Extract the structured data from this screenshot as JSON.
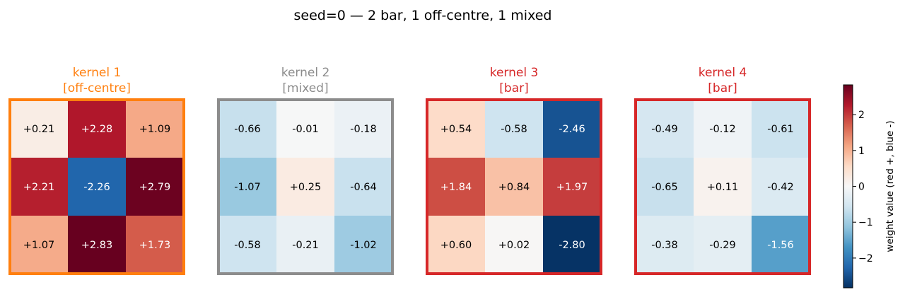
{
  "chart_data": {
    "type": "heatmap",
    "title": "seed=0  —  2 bar, 1 off-centre, 1 mixed",
    "kernels": [
      {
        "name": "kernel 1",
        "tag": "[off-centre]",
        "color": "#ff7f0e",
        "values": [
          [
            0.21,
            2.28,
            1.09
          ],
          [
            2.21,
            -2.26,
            2.79
          ],
          [
            1.07,
            2.83,
            1.73
          ]
        ],
        "labels": [
          [
            "+0.21",
            "+2.28",
            "+1.09"
          ],
          [
            "+2.21",
            "-2.26",
            "+2.79"
          ],
          [
            "+1.07",
            "+2.83",
            "+1.73"
          ]
        ]
      },
      {
        "name": "kernel 2",
        "tag": "[mixed]",
        "color": "#8c8c8c",
        "values": [
          [
            -0.66,
            -0.01,
            -0.18
          ],
          [
            -1.07,
            0.25,
            -0.64
          ],
          [
            -0.58,
            -0.21,
            -1.02
          ]
        ],
        "labels": [
          [
            "-0.66",
            "-0.01",
            "-0.18"
          ],
          [
            "-1.07",
            "+0.25",
            "-0.64"
          ],
          [
            "-0.58",
            "-0.21",
            "-1.02"
          ]
        ]
      },
      {
        "name": "kernel 3",
        "tag": "[bar]",
        "color": "#d62728",
        "values": [
          [
            0.54,
            -0.58,
            -2.46
          ],
          [
            1.84,
            0.84,
            1.97
          ],
          [
            0.6,
            0.02,
            -2.8
          ]
        ],
        "labels": [
          [
            "+0.54",
            "-0.58",
            "-2.46"
          ],
          [
            "+1.84",
            "+0.84",
            "+1.97"
          ],
          [
            "+0.60",
            "+0.02",
            "-2.80"
          ]
        ]
      },
      {
        "name": "kernel 4",
        "tag": "[bar]",
        "color": "#d62728",
        "values": [
          [
            -0.49,
            -0.12,
            -0.61
          ],
          [
            -0.65,
            0.11,
            -0.42
          ],
          [
            -0.38,
            -0.29,
            -1.56
          ]
        ],
        "labels": [
          [
            "-0.49",
            "-0.12",
            "-0.61"
          ],
          [
            "-0.65",
            "+0.11",
            "-0.42"
          ],
          [
            "-0.38",
            "-0.29",
            "-1.56"
          ]
        ]
      }
    ],
    "colorbar": {
      "label": "weight value (red +, blue -)",
      "range": [
        -2.83,
        2.83
      ],
      "colormap": "RdBu_r",
      "ticks": [
        -2,
        -1,
        0,
        1,
        2
      ],
      "tick_labels": [
        "−2",
        "−1",
        "0",
        "1",
        "2"
      ]
    }
  }
}
